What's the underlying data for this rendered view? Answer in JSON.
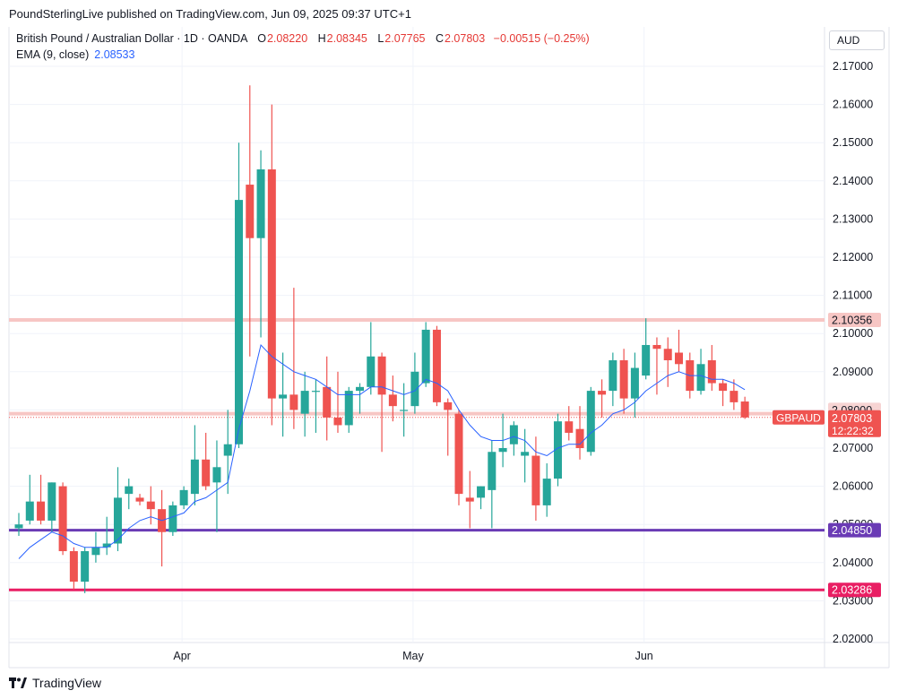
{
  "header": {
    "publisher_line": "PoundSterlingLive published on TradingView.com, Jun 09, 2025 09:37 UTC+1"
  },
  "legend": {
    "instrument": "British Pound / Australian Dollar · 1D · OANDA",
    "open_label": "O",
    "open": "2.08220",
    "high_label": "H",
    "high": "2.08345",
    "low_label": "L",
    "low": "2.07765",
    "close_label": "C",
    "close": "2.07803",
    "change": "−0.00515 (−0.25%)",
    "ema_label": "EMA (9, close)",
    "ema_value": "2.08533"
  },
  "axis": {
    "currency": "AUD",
    "x_labels": [
      "Apr",
      "May",
      "Jun"
    ]
  },
  "price_labels": {
    "last_symbol": "GBPAUD",
    "last_price": "2.07803",
    "countdown": "12:22:32",
    "resistance": "2.10356",
    "support_1": "2.04850",
    "support_2": "2.03286",
    "level_2080": "2.08000"
  },
  "footer": {
    "brand": "TradingView"
  },
  "colors": {
    "up": "#26a69a",
    "down": "#ef5350",
    "ema": "#2962ff",
    "support_1": "#6a3bb5",
    "support_2": "#e91e63",
    "resistance_band": "#f7c6c4"
  },
  "chart_data": {
    "type": "candlestick",
    "y_ticks": [
      "2.17000",
      "2.16000",
      "2.15000",
      "2.14000",
      "2.13000",
      "2.12000",
      "2.11000",
      "2.10000",
      "2.09000",
      "2.08000",
      "2.07000",
      "2.06000",
      "2.05000",
      "2.04000",
      "2.03000",
      "2.02000"
    ],
    "ylim": [
      2.02,
      2.175
    ],
    "x_index_labels": [
      {
        "label": "Apr",
        "index": 15
      },
      {
        "label": "May",
        "index": 36
      },
      {
        "label": "Jun",
        "index": 57
      }
    ],
    "horizontal_lines": [
      {
        "value": 2.10356,
        "style": "band"
      },
      {
        "value": 2.079,
        "style": "band"
      },
      {
        "value": 2.0485,
        "style": "solid",
        "color": "#6a3bb5"
      },
      {
        "value": 2.03286,
        "style": "solid",
        "color": "#e91e63"
      }
    ],
    "current_price": 2.07803,
    "candles": [
      {
        "o": 2.049,
        "h": 2.053,
        "l": 2.047,
        "c": 2.05
      },
      {
        "o": 2.051,
        "h": 2.063,
        "l": 2.05,
        "c": 2.056
      },
      {
        "o": 2.056,
        "h": 2.063,
        "l": 2.05,
        "c": 2.051
      },
      {
        "o": 2.051,
        "h": 2.061,
        "l": 2.048,
        "c": 2.061
      },
      {
        "o": 2.06,
        "h": 2.061,
        "l": 2.042,
        "c": 2.043
      },
      {
        "o": 2.043,
        "h": 2.044,
        "l": 2.033,
        "c": 2.035
      },
      {
        "o": 2.035,
        "h": 2.044,
        "l": 2.032,
        "c": 2.043
      },
      {
        "o": 2.042,
        "h": 2.048,
        "l": 2.04,
        "c": 2.044
      },
      {
        "o": 2.044,
        "h": 2.052,
        "l": 2.042,
        "c": 2.045
      },
      {
        "o": 2.045,
        "h": 2.065,
        "l": 2.043,
        "c": 2.057
      },
      {
        "o": 2.058,
        "h": 2.062,
        "l": 2.054,
        "c": 2.06
      },
      {
        "o": 2.057,
        "h": 2.058,
        "l": 2.055,
        "c": 2.056
      },
      {
        "o": 2.056,
        "h": 2.06,
        "l": 2.05,
        "c": 2.054
      },
      {
        "o": 2.054,
        "h": 2.059,
        "l": 2.039,
        "c": 2.048
      },
      {
        "o": 2.048,
        "h": 2.056,
        "l": 2.047,
        "c": 2.055
      },
      {
        "o": 2.055,
        "h": 2.06,
        "l": 2.054,
        "c": 2.059
      },
      {
        "o": 2.058,
        "h": 2.076,
        "l": 2.055,
        "c": 2.067
      },
      {
        "o": 2.067,
        "h": 2.074,
        "l": 2.059,
        "c": 2.06
      },
      {
        "o": 2.061,
        "h": 2.072,
        "l": 2.048,
        "c": 2.065
      },
      {
        "o": 2.068,
        "h": 2.08,
        "l": 2.058,
        "c": 2.071
      },
      {
        "o": 2.071,
        "h": 2.15,
        "l": 2.07,
        "c": 2.135
      },
      {
        "o": 2.139,
        "h": 2.165,
        "l": 2.094,
        "c": 2.125
      },
      {
        "o": 2.125,
        "h": 2.148,
        "l": 2.099,
        "c": 2.143
      },
      {
        "o": 2.143,
        "h": 2.16,
        "l": 2.076,
        "c": 2.083
      },
      {
        "o": 2.083,
        "h": 2.095,
        "l": 2.073,
        "c": 2.084
      },
      {
        "o": 2.084,
        "h": 2.112,
        "l": 2.075,
        "c": 2.08
      },
      {
        "o": 2.079,
        "h": 2.09,
        "l": 2.073,
        "c": 2.085
      },
      {
        "o": 2.085,
        "h": 2.088,
        "l": 2.074,
        "c": 2.085
      },
      {
        "o": 2.086,
        "h": 2.094,
        "l": 2.072,
        "c": 2.078
      },
      {
        "o": 2.078,
        "h": 2.09,
        "l": 2.074,
        "c": 2.076
      },
      {
        "o": 2.076,
        "h": 2.086,
        "l": 2.074,
        "c": 2.085
      },
      {
        "o": 2.085,
        "h": 2.087,
        "l": 2.079,
        "c": 2.086
      },
      {
        "o": 2.086,
        "h": 2.103,
        "l": 2.084,
        "c": 2.094
      },
      {
        "o": 2.094,
        "h": 2.095,
        "l": 2.069,
        "c": 2.084
      },
      {
        "o": 2.084,
        "h": 2.089,
        "l": 2.077,
        "c": 2.081
      },
      {
        "o": 2.08,
        "h": 2.087,
        "l": 2.073,
        "c": 2.08
      },
      {
        "o": 2.081,
        "h": 2.095,
        "l": 2.079,
        "c": 2.09
      },
      {
        "o": 2.087,
        "h": 2.103,
        "l": 2.086,
        "c": 2.101
      },
      {
        "o": 2.101,
        "h": 2.102,
        "l": 2.081,
        "c": 2.082
      },
      {
        "o": 2.082,
        "h": 2.083,
        "l": 2.068,
        "c": 2.08
      },
      {
        "o": 2.079,
        "h": 2.08,
        "l": 2.055,
        "c": 2.058
      },
      {
        "o": 2.057,
        "h": 2.064,
        "l": 2.049,
        "c": 2.056
      },
      {
        "o": 2.057,
        "h": 2.06,
        "l": 2.054,
        "c": 2.06
      },
      {
        "o": 2.059,
        "h": 2.072,
        "l": 2.049,
        "c": 2.069
      },
      {
        "o": 2.069,
        "h": 2.079,
        "l": 2.065,
        "c": 2.07
      },
      {
        "o": 2.071,
        "h": 2.077,
        "l": 2.068,
        "c": 2.076
      },
      {
        "o": 2.068,
        "h": 2.075,
        "l": 2.061,
        "c": 2.069
      },
      {
        "o": 2.068,
        "h": 2.073,
        "l": 2.051,
        "c": 2.055
      },
      {
        "o": 2.055,
        "h": 2.066,
        "l": 2.052,
        "c": 2.062
      },
      {
        "o": 2.062,
        "h": 2.079,
        "l": 2.06,
        "c": 2.077
      },
      {
        "o": 2.077,
        "h": 2.081,
        "l": 2.072,
        "c": 2.074
      },
      {
        "o": 2.075,
        "h": 2.081,
        "l": 2.067,
        "c": 2.07
      },
      {
        "o": 2.069,
        "h": 2.086,
        "l": 2.068,
        "c": 2.085
      },
      {
        "o": 2.085,
        "h": 2.088,
        "l": 2.078,
        "c": 2.084
      },
      {
        "o": 2.085,
        "h": 2.095,
        "l": 2.081,
        "c": 2.093
      },
      {
        "o": 2.093,
        "h": 2.096,
        "l": 2.079,
        "c": 2.083
      },
      {
        "o": 2.083,
        "h": 2.095,
        "l": 2.078,
        "c": 2.091
      },
      {
        "o": 2.089,
        "h": 2.104,
        "l": 2.088,
        "c": 2.097
      },
      {
        "o": 2.097,
        "h": 2.099,
        "l": 2.084,
        "c": 2.096
      },
      {
        "o": 2.096,
        "h": 2.099,
        "l": 2.086,
        "c": 2.093
      },
      {
        "o": 2.095,
        "h": 2.101,
        "l": 2.09,
        "c": 2.092
      },
      {
        "o": 2.093,
        "h": 2.095,
        "l": 2.083,
        "c": 2.085
      },
      {
        "o": 2.085,
        "h": 2.096,
        "l": 2.084,
        "c": 2.092
      },
      {
        "o": 2.093,
        "h": 2.097,
        "l": 2.085,
        "c": 2.087
      },
      {
        "o": 2.087,
        "h": 2.088,
        "l": 2.081,
        "c": 2.085
      },
      {
        "o": 2.085,
        "h": 2.088,
        "l": 2.08,
        "c": 2.082
      },
      {
        "o": 2.0822,
        "h": 2.08345,
        "l": 2.07765,
        "c": 2.07803
      }
    ],
    "ema": {
      "name": "EMA (9, close)",
      "values": [
        2.041,
        2.044,
        2.046,
        2.048,
        2.047,
        2.045,
        2.044,
        2.044,
        2.044,
        2.046,
        2.049,
        2.051,
        2.052,
        2.051,
        2.052,
        2.053,
        2.056,
        2.057,
        2.059,
        2.061,
        2.075,
        2.085,
        2.097,
        2.094,
        2.092,
        2.09,
        2.089,
        2.088,
        2.086,
        2.084,
        2.084,
        2.084,
        2.086,
        2.086,
        2.085,
        2.084,
        2.085,
        2.088,
        2.087,
        2.085,
        2.08,
        2.076,
        2.073,
        2.072,
        2.072,
        2.073,
        2.072,
        2.069,
        2.068,
        2.07,
        2.071,
        2.071,
        2.074,
        2.076,
        2.079,
        2.08,
        2.082,
        2.085,
        2.087,
        2.089,
        2.09,
        2.089,
        2.089,
        2.088,
        2.088,
        2.087,
        2.0853
      ]
    }
  }
}
